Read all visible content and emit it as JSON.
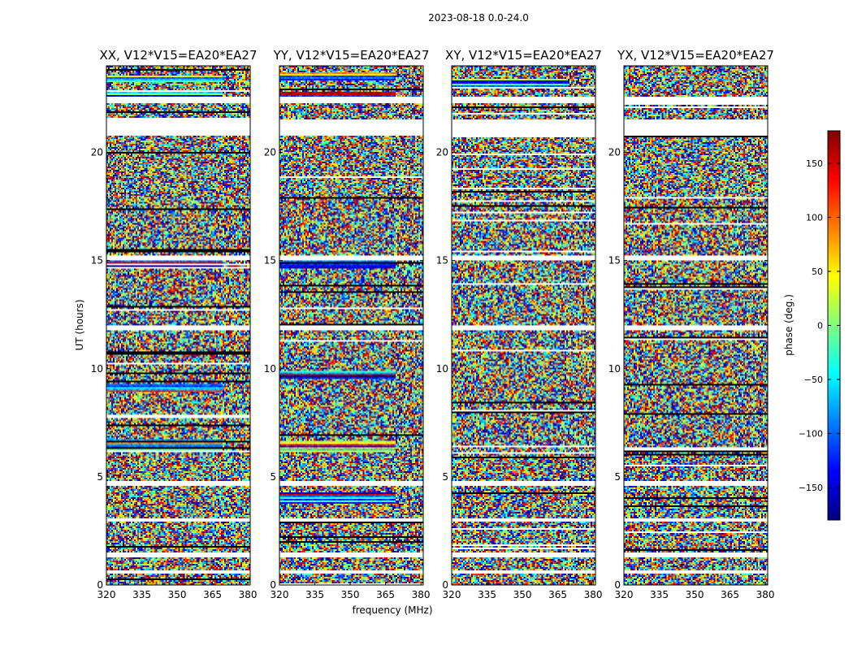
{
  "figure": {
    "suptitle": "2023-08-18 0.0-24.0",
    "shared_xlabel": "frequency (MHz)",
    "shared_ylabel": "UT (hours)"
  },
  "chart_data": [
    {
      "type": "heatmap",
      "title": "XX, V12*V15=EA20*EA27",
      "xlabel": "frequency (MHz)",
      "ylabel": "UT (hours)",
      "xlim": [
        320,
        381
      ],
      "ylim": [
        0,
        24
      ],
      "xticks": [
        320,
        335,
        350,
        365,
        380
      ],
      "xtick_labels": [
        "320",
        "335",
        "350",
        "365",
        "380"
      ],
      "yticks": [
        0,
        5,
        10,
        15,
        20
      ],
      "ytick_labels": [
        "0",
        "5",
        "10",
        "15",
        "20"
      ],
      "value_label": "phase (deg.)",
      "value_range": [
        -180,
        180
      ],
      "coherent_bands_ut": [
        22.6,
        23.4,
        6.6,
        6.3,
        14.8,
        9.1
      ],
      "flagged_gaps_ut": [
        [
          0.5,
          0.65
        ],
        [
          1.3,
          1.5
        ],
        [
          2.9,
          3.05
        ],
        [
          4.6,
          4.8
        ],
        [
          11.8,
          12.0
        ],
        [
          15.0,
          15.2
        ],
        [
          20.8,
          21.5
        ],
        [
          22.3,
          22.55
        ]
      ]
    },
    {
      "type": "heatmap",
      "title": "YY, V12*V15=EA20*EA27",
      "xlabel": "frequency (MHz)",
      "ylabel": "",
      "xlim": [
        320,
        381
      ],
      "ylim": [
        0,
        24
      ],
      "xticks": [
        320,
        335,
        350,
        365,
        380
      ],
      "xtick_labels": [
        "320",
        "335",
        "350",
        "365",
        "380"
      ],
      "yticks": [
        0,
        5,
        10,
        15,
        20
      ],
      "ytick_labels": [
        "0",
        "5",
        "10",
        "15",
        "20"
      ],
      "value_label": "phase (deg.)",
      "value_range": [
        -180,
        180
      ],
      "coherent_bands_ut": [
        22.6,
        23.5,
        6.5,
        6.3,
        4.1,
        3.9,
        14.8,
        9.7
      ],
      "flagged_gaps_ut": [
        [
          0.5,
          0.65
        ],
        [
          1.3,
          1.5
        ],
        [
          2.9,
          3.05
        ],
        [
          4.6,
          4.8
        ],
        [
          11.8,
          12.0
        ],
        [
          15.0,
          15.2
        ],
        [
          20.8,
          21.5
        ],
        [
          22.3,
          22.55
        ]
      ]
    },
    {
      "type": "heatmap",
      "title": "XY, V12*V15=EA20*EA27",
      "xlabel": "frequency (MHz)",
      "ylabel": "",
      "xlim": [
        320,
        381
      ],
      "ylim": [
        0,
        24
      ],
      "xticks": [
        320,
        335,
        350,
        365,
        380
      ],
      "xtick_labels": [
        "320",
        "335",
        "350",
        "365",
        "380"
      ],
      "yticks": [
        0,
        5,
        10,
        15,
        20
      ],
      "ytick_labels": [
        "0",
        "5",
        "10",
        "15",
        "20"
      ],
      "value_label": "phase (deg.)",
      "value_range": [
        -180,
        180
      ],
      "coherent_bands_ut": [
        23.2
      ],
      "flagged_gaps_ut": [
        [
          0.5,
          0.65
        ],
        [
          1.3,
          1.5
        ],
        [
          2.9,
          3.05
        ],
        [
          4.6,
          4.8
        ],
        [
          11.8,
          12.0
        ],
        [
          15.0,
          15.2
        ],
        [
          20.8,
          21.5
        ],
        [
          22.3,
          22.55
        ]
      ]
    },
    {
      "type": "heatmap",
      "title": "YX, V12*V15=EA20*EA27",
      "xlabel": "frequency (MHz)",
      "ylabel": "",
      "xlim": [
        320,
        381
      ],
      "ylim": [
        0,
        24
      ],
      "xticks": [
        320,
        335,
        350,
        365,
        380
      ],
      "xtick_labels": [
        "320",
        "335",
        "350",
        "365",
        "380"
      ],
      "yticks": [
        0,
        5,
        10,
        15,
        20
      ],
      "ytick_labels": [
        "0",
        "5",
        "10",
        "15",
        "20"
      ],
      "value_label": "phase (deg.)",
      "value_range": [
        -180,
        180
      ],
      "coherent_bands_ut": [],
      "flagged_gaps_ut": [
        [
          0.5,
          0.65
        ],
        [
          1.3,
          1.5
        ],
        [
          2.9,
          3.05
        ],
        [
          4.6,
          4.8
        ],
        [
          11.8,
          12.0
        ],
        [
          15.0,
          15.2
        ],
        [
          20.8,
          21.5
        ],
        [
          22.3,
          22.55
        ]
      ]
    }
  ],
  "colorbar": {
    "label": "phase (deg.)",
    "range": [
      -180,
      180
    ],
    "ticks": [
      150,
      100,
      50,
      0,
      -50,
      -100,
      -150
    ],
    "tick_labels": [
      "150",
      "100",
      "50",
      "0",
      "−50",
      "−100",
      "−150"
    ],
    "colormap": "jet",
    "colormap_stops": [
      "#00007f",
      "#0000ff",
      "#007fff",
      "#00ffff",
      "#7fff7f",
      "#ffff00",
      "#ff7f00",
      "#ff0000",
      "#7f0000"
    ]
  }
}
